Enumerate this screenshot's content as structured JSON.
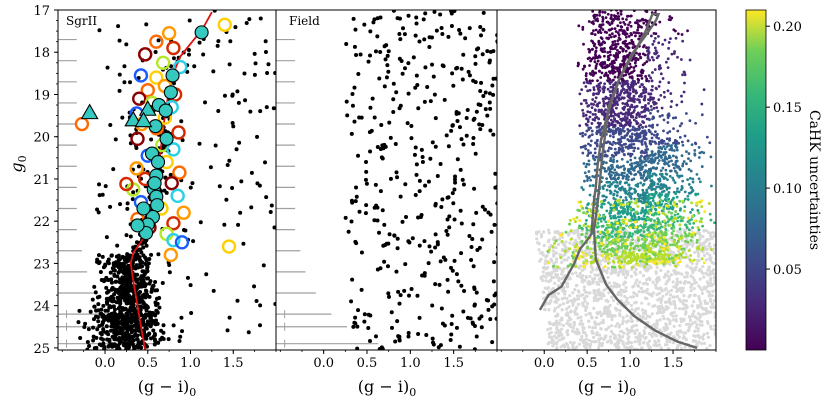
{
  "figure": {
    "panel_labels": [
      "SgrII",
      "Field",
      ""
    ],
    "xlabel": "(g − i)",
    "xlabel_sub": "0",
    "ylabel": "g",
    "ylabel_sub": "0",
    "colorbar_label": "CaHK uncertainties"
  },
  "chart_data": [
    {
      "type": "scatter",
      "title": "SgrII",
      "xlabel": "(g - i)0",
      "ylabel": "g0",
      "xlim": [
        -0.55,
        2.0
      ],
      "ylim": [
        25.05,
        17.0
      ],
      "y_inverted": true,
      "x_ticks": [
        0.0,
        0.5,
        1.0,
        1.5
      ],
      "y_ticks": [
        17,
        18,
        19,
        20,
        21,
        22,
        23,
        24,
        25
      ],
      "series": [
        {
          "kind": "isochrone",
          "color": "#dd1111",
          "points": [
            [
              0.47,
              25.05
            ],
            [
              0.43,
              24.6
            ],
            [
              0.38,
              24.0
            ],
            [
              0.33,
              23.4
            ],
            [
              0.3,
              23.0
            ],
            [
              0.33,
              22.75
            ],
            [
              0.42,
              22.5
            ],
            [
              0.5,
              22.2
            ],
            [
              0.55,
              21.8
            ],
            [
              0.58,
              21.4
            ],
            [
              0.61,
              21.0
            ],
            [
              0.64,
              20.5
            ],
            [
              0.67,
              20.0
            ],
            [
              0.7,
              19.5
            ],
            [
              0.74,
              19.0
            ],
            [
              0.8,
              18.5
            ],
            [
              0.88,
              18.1
            ],
            [
              1.0,
              17.8
            ],
            [
              1.14,
              17.45
            ],
            [
              1.25,
              17.05
            ]
          ]
        },
        {
          "kind": "spectroscopic members (filled, outlined black)",
          "color": "#36c9c0",
          "points": [
            [
              1.13,
              17.53
            ],
            [
              0.79,
              18.55
            ],
            [
              0.77,
              18.95
            ],
            [
              0.63,
              19.25
            ],
            [
              0.71,
              19.38
            ],
            [
              0.59,
              19.75
            ],
            [
              0.72,
              20.05
            ],
            [
              0.55,
              20.4
            ],
            [
              0.62,
              20.6
            ],
            [
              0.6,
              20.92
            ],
            [
              0.57,
              21.25
            ],
            [
              0.6,
              21.42
            ],
            [
              0.61,
              21.62
            ],
            [
              0.56,
              21.9
            ],
            [
              0.5,
              22.08
            ],
            [
              0.48,
              22.28
            ],
            [
              0.38,
              22.1
            ],
            [
              0.45,
              21.7
            ],
            [
              0.58,
              21.1
            ]
          ]
        },
        {
          "kind": "blue horizontal branch (triangles)",
          "color": "#36c9c0",
          "points": [
            [
              -0.18,
              19.43
            ],
            [
              0.33,
              19.6
            ],
            [
              0.5,
              19.35
            ],
            [
              0.45,
              19.62
            ]
          ]
        },
        {
          "kind": "CaHK candidates (open circles, colored by metallicity)",
          "colors": [
            "#ffd000",
            "#ff9a00",
            "#ff6a00",
            "#d42a00",
            "#8a0000",
            "#b5e82a",
            "#2ad1e6",
            "#1a5cff"
          ],
          "points": [
            [
              1.4,
              17.35
            ],
            [
              0.75,
              17.55
            ],
            [
              0.6,
              17.75
            ],
            [
              0.8,
              17.9
            ],
            [
              0.47,
              18.05
            ],
            [
              0.68,
              18.25
            ],
            [
              0.88,
              18.35
            ],
            [
              0.42,
              18.55
            ],
            [
              0.6,
              18.6
            ],
            [
              0.7,
              18.8
            ],
            [
              0.5,
              18.9
            ],
            [
              0.82,
              19.0
            ],
            [
              0.4,
              19.1
            ],
            [
              0.55,
              19.2
            ],
            [
              0.78,
              19.3
            ],
            [
              0.37,
              19.45
            ],
            [
              0.7,
              19.55
            ],
            [
              0.43,
              19.7
            ],
            [
              0.6,
              19.8
            ],
            [
              0.86,
              19.9
            ],
            [
              0.38,
              20.05
            ],
            [
              0.67,
              20.2
            ],
            [
              0.8,
              20.3
            ],
            [
              0.5,
              20.45
            ],
            [
              0.72,
              20.6
            ],
            [
              0.37,
              20.75
            ],
            [
              0.87,
              20.85
            ],
            [
              0.47,
              21.0
            ],
            [
              0.78,
              21.1
            ],
            [
              0.33,
              21.25
            ],
            [
              0.85,
              21.4
            ],
            [
              0.42,
              21.55
            ],
            [
              0.66,
              21.7
            ],
            [
              0.92,
              21.8
            ],
            [
              0.38,
              21.95
            ],
            [
              0.8,
              22.05
            ],
            [
              0.52,
              22.15
            ],
            [
              0.72,
              22.3
            ],
            [
              0.8,
              22.45
            ],
            [
              0.9,
              22.5
            ],
            [
              1.45,
              22.6
            ],
            [
              0.77,
              22.8
            ],
            [
              -0.27,
              19.7
            ],
            [
              0.25,
              21.12
            ]
          ]
        },
        {
          "kind": "photometric sources",
          "color": "#000000",
          "note": "dense red giant branch and main-sequence turnoff around (0.3–0.6, 22.5–25)"
        }
      ],
      "errorbars": {
        "color": "#a0a0a0",
        "rows_g": [
          17.7,
          18.2,
          18.7,
          19.2,
          19.7,
          20.2,
          20.7,
          21.2,
          21.7,
          22.2,
          22.7,
          23.2,
          23.7,
          24.2,
          24.5,
          24.9
        ],
        "half_widths": [
          0.02,
          0.02,
          0.02,
          0.02,
          0.02,
          0.02,
          0.02,
          0.02,
          0.02,
          0.02,
          0.03,
          0.04,
          0.06,
          0.09,
          0.12,
          0.18
        ]
      }
    },
    {
      "type": "scatter",
      "title": "Field",
      "xlabel": "(g - i)0",
      "xlim": [
        -0.55,
        2.0
      ],
      "ylim": [
        25.05,
        17.0
      ],
      "x_ticks": [
        0.0,
        0.5,
        1.0,
        1.5
      ],
      "series": [
        {
          "kind": "field sources",
          "color": "#000000",
          "note": "sparse, spread between g0 = 17 and 25 and (g-i)0 = 0.3 to 2.0"
        }
      ]
    },
    {
      "type": "scatter",
      "xlabel": "(g - i)0",
      "xlim": [
        -0.55,
        2.0
      ],
      "ylim": [
        25.05,
        17.0
      ],
      "x_ticks": [
        0.0,
        0.5,
        1.0,
        1.5
      ],
      "color_scale": "viridis",
      "colorbar": {
        "label": "CaHK uncertainties",
        "range": [
          0.0,
          0.21
        ],
        "ticks": [
          0.05,
          0.1,
          0.15,
          0.2
        ]
      },
      "series": [
        {
          "kind": "sources colored by CaHK uncertainty",
          "note": "uncertainty increases with g0; faint sources beyond threshold shown in light grey"
        },
        {
          "kind": "isochrone (grey)",
          "color": "#666666",
          "points": [
            [
              -0.05,
              24.1
            ],
            [
              0.05,
              23.75
            ],
            [
              0.2,
              23.55
            ],
            [
              0.35,
              23.0
            ],
            [
              0.42,
              22.65
            ],
            [
              0.5,
              22.45
            ],
            [
              0.55,
              22.3
            ],
            [
              0.58,
              21.5
            ],
            [
              0.6,
              21.2
            ],
            [
              0.62,
              20.7
            ],
            [
              0.66,
              20.1
            ],
            [
              0.72,
              19.6
            ],
            [
              0.78,
              19.2
            ],
            [
              0.88,
              18.6
            ],
            [
              1.02,
              18.05
            ],
            [
              1.2,
              17.55
            ],
            [
              1.3,
              17.25
            ],
            [
              1.33,
              17.1
            ],
            [
              1.26,
              17.1
            ],
            [
              1.18,
              17.5
            ],
            [
              1.05,
              18.0
            ],
            [
              0.88,
              18.6
            ],
            [
              0.75,
              19.3
            ],
            [
              0.72,
              19.8
            ],
            [
              0.68,
              20.4
            ],
            [
              0.65,
              21.0
            ],
            [
              0.62,
              21.6
            ],
            [
              0.58,
              22.2
            ],
            [
              0.6,
              22.9
            ],
            [
              0.72,
              23.5
            ],
            [
              0.85,
              23.85
            ],
            [
              1.05,
              24.25
            ],
            [
              1.3,
              24.6
            ],
            [
              1.55,
              24.85
            ],
            [
              1.78,
              25.0
            ]
          ]
        }
      ]
    }
  ]
}
